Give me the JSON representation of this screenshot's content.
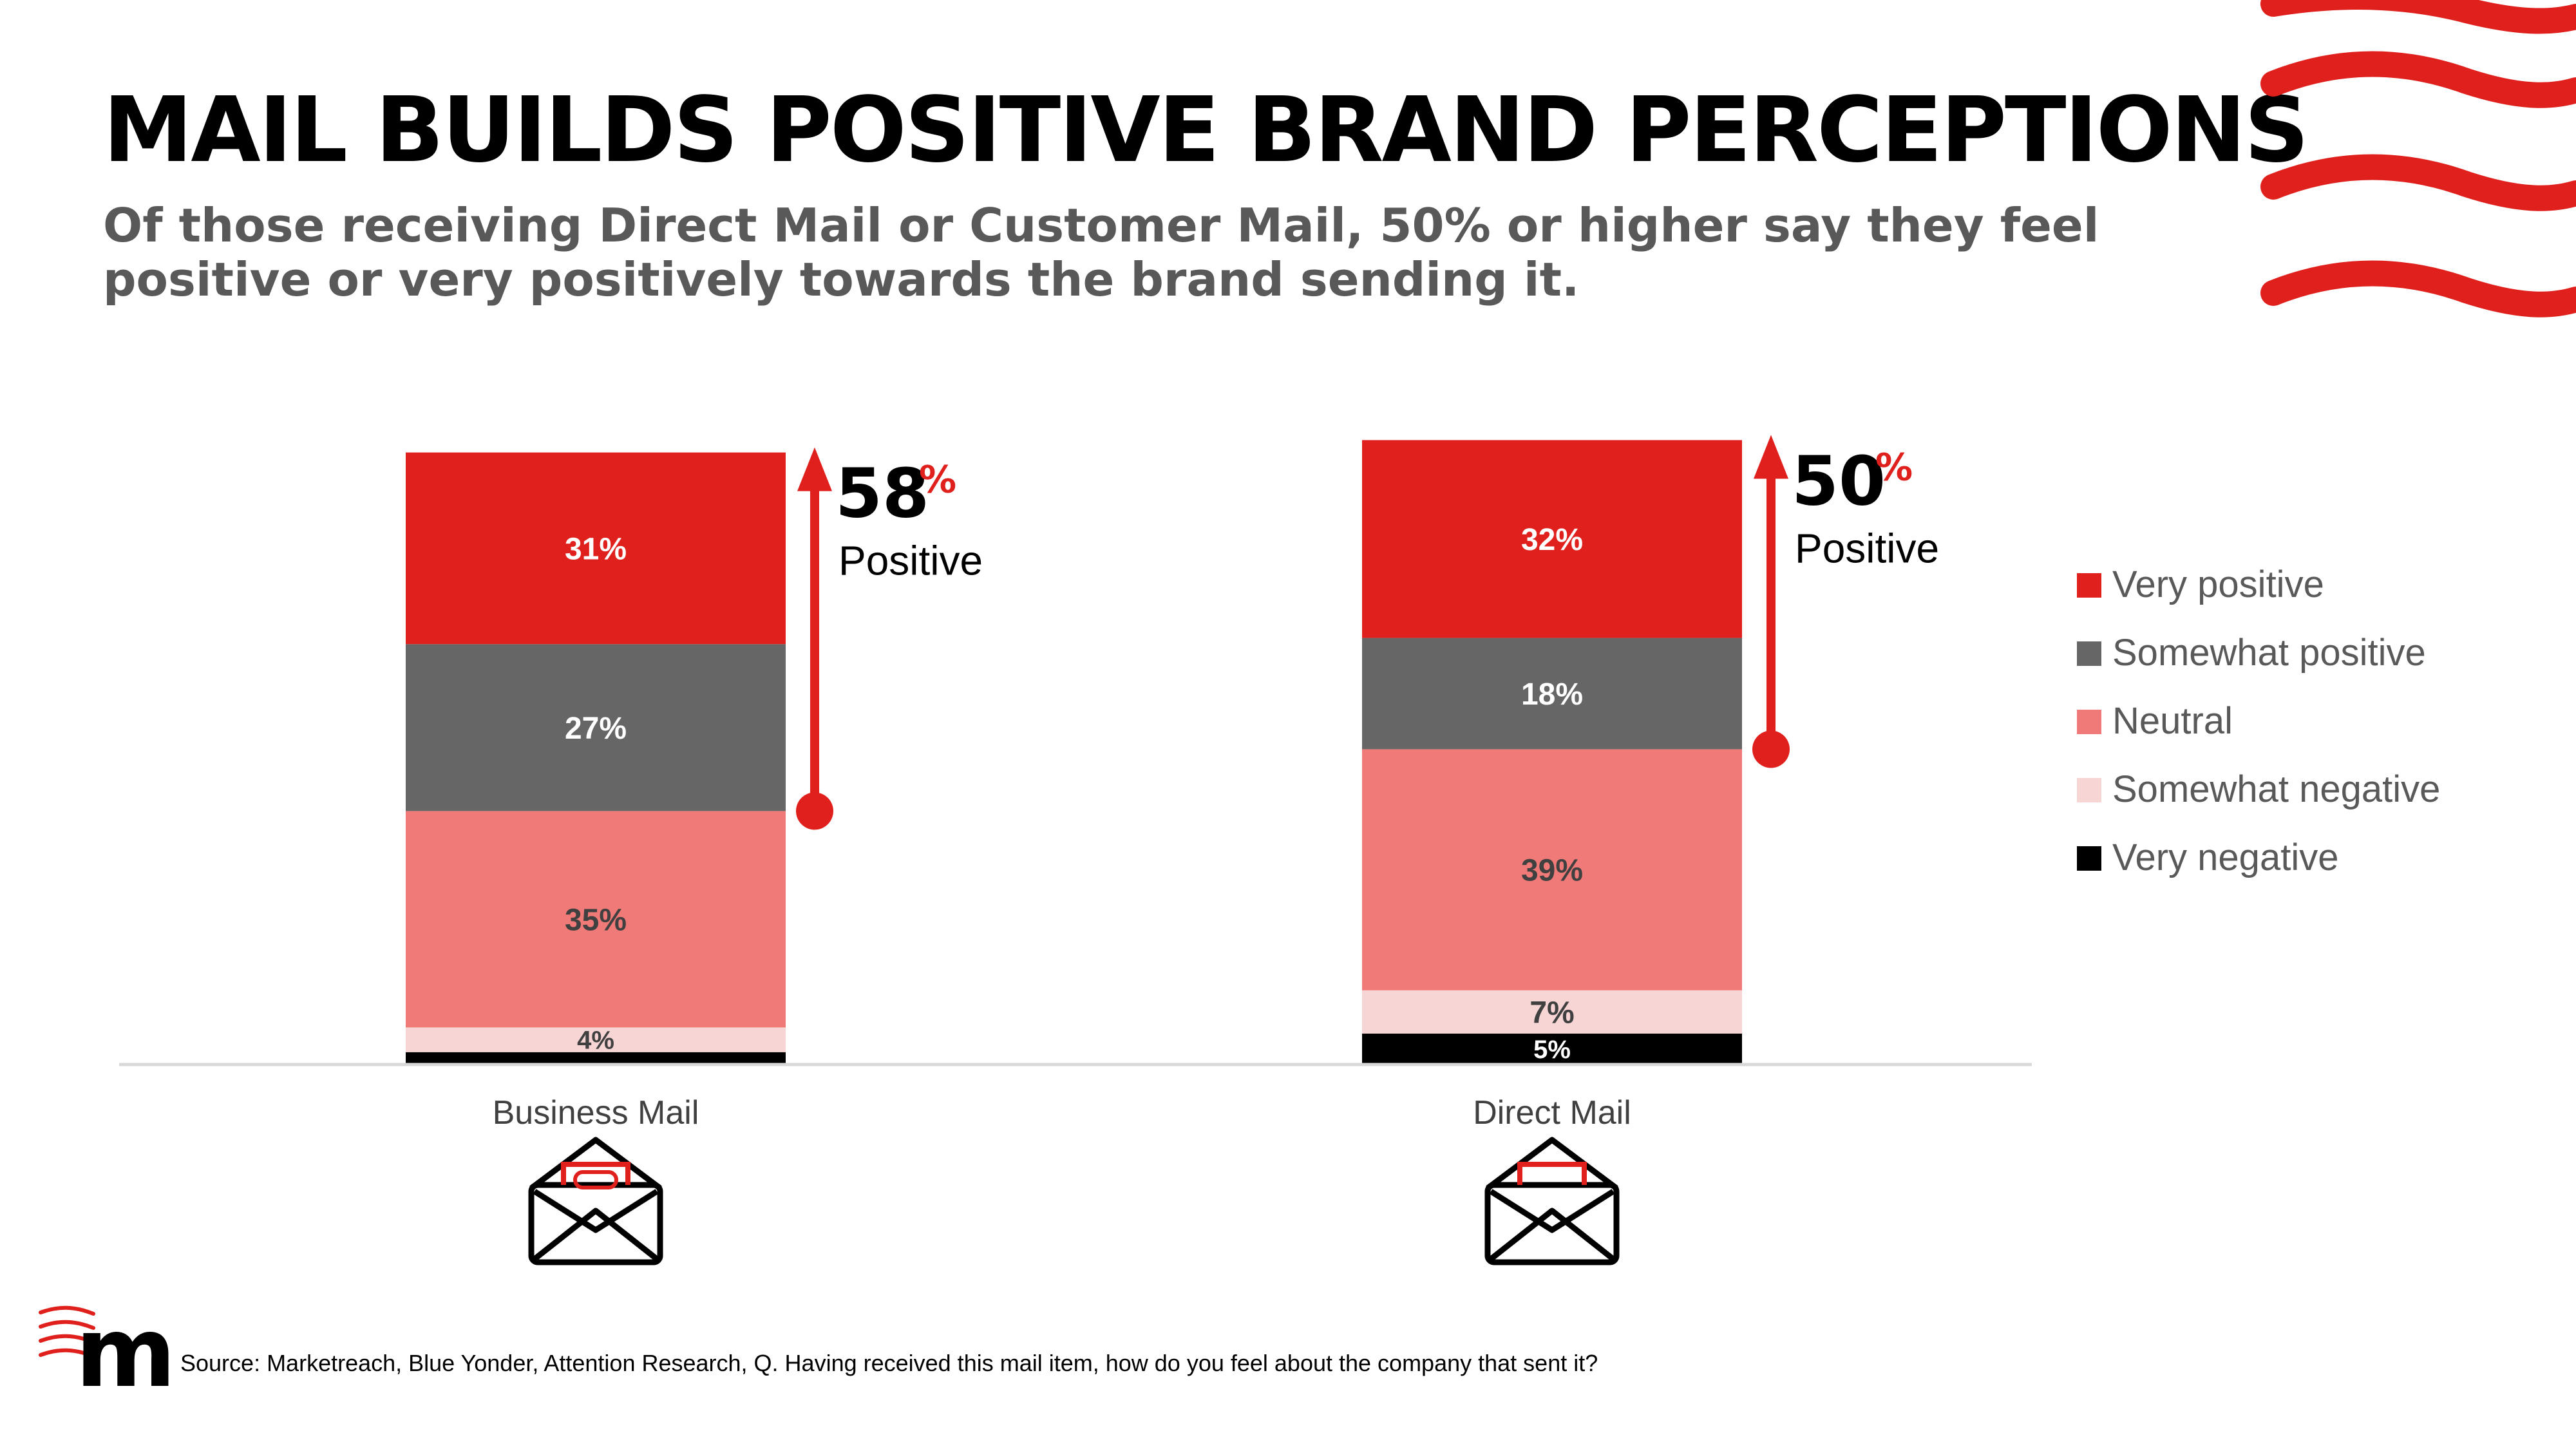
{
  "title": "MAIL BUILDS POSITIVE BRAND PERCEPTIONS",
  "subtitle": "Of those receiving Direct Mail or Customer Mail, 50% or higher say they feel positive or very positively towards the brand sending it.",
  "source": "Source: Marketreach, Blue Yonder, Attention Research, Q. Having received this mail item, how do you feel about the company that sent it?",
  "logo_text": "m",
  "colors": {
    "very_positive": "#e0201c",
    "somewhat_positive": "#666666",
    "neutral": "#ef7a77",
    "somewhat_negative": "#f8d5d5",
    "very_negative": "#000000",
    "accent": "#e0201c"
  },
  "chart_data": {
    "type": "bar",
    "stacked": true,
    "categories": [
      "Business Mail",
      "Direct Mail"
    ],
    "series": [
      {
        "name": "Very negative",
        "values": [
          2,
          5
        ],
        "labels": [
          "",
          "5%"
        ]
      },
      {
        "name": "Somewhat negative",
        "values": [
          4,
          7
        ],
        "labels": [
          "4%",
          "7%"
        ]
      },
      {
        "name": "Neutral",
        "values": [
          35,
          39
        ],
        "labels": [
          "35%",
          "39%"
        ]
      },
      {
        "name": "Somewhat positive",
        "values": [
          27,
          18
        ],
        "labels": [
          "27%",
          "18%"
        ]
      },
      {
        "name": "Very positive",
        "values": [
          31,
          32
        ],
        "labels": [
          "31%",
          "32%"
        ]
      }
    ],
    "legend": [
      "Very positive",
      "Somewhat positive",
      "Neutral",
      "Somewhat negative",
      "Very negative"
    ],
    "legend_position": "right",
    "annotations": [
      {
        "category": "Business Mail",
        "value": "58",
        "unit": "%",
        "label": "Positive"
      },
      {
        "category": "Direct Mail",
        "value": "50",
        "unit": "%",
        "label": "Positive"
      }
    ],
    "category_icons": [
      "envelope-paperclip-icon",
      "envelope-letter-icon"
    ],
    "grid": false
  }
}
